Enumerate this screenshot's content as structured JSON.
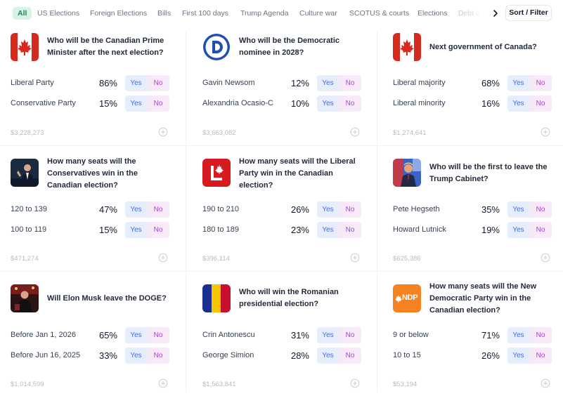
{
  "nav": {
    "tabs": [
      "All",
      "US Elections",
      "Foreign Elections",
      "Bills",
      "First 100 days",
      "Trump Agenda",
      "Culture war",
      "SCOTUS & courts",
      "Elections",
      "Debt c"
    ],
    "sort_label": "Sort / Filter",
    "arrow_icon": "chevron-right-icon"
  },
  "button_labels": {
    "yes": "Yes",
    "no": "No"
  },
  "colors": {
    "accent_green": "#18884f",
    "yes_text": "#3b6df0",
    "no_text": "#a646c9"
  },
  "markets": [
    {
      "title": "Who will be the Canadian Prime Minister after the next election?",
      "image": "canada-flag-icon",
      "options": [
        {
          "label": "Liberal Party",
          "pct": "86%"
        },
        {
          "label": "Conservative Party",
          "pct": "15%"
        }
      ],
      "volume": "$3,228,273"
    },
    {
      "title": "Who will be the Democratic nominee in 2028?",
      "image": "democratic-party-logo-icon",
      "options": [
        {
          "label": "Gavin Newsom",
          "pct": "12%"
        },
        {
          "label": "Alexandria Ocasio-C",
          "pct": "10%"
        }
      ],
      "volume": "$3,663,082"
    },
    {
      "title": "Next government of Canada?",
      "image": "canada-flag-icon",
      "options": [
        {
          "label": "Liberal majority",
          "pct": "68%"
        },
        {
          "label": "Liberal minority",
          "pct": "16%"
        }
      ],
      "volume": "$1,274,641"
    },
    {
      "title": "How many seats will the Conservatives win in the Canadian election?",
      "image": "conservative-leader-photo-icon",
      "options": [
        {
          "label": "120 to 139",
          "pct": "47%"
        },
        {
          "label": "100 to 119",
          "pct": "15%"
        }
      ],
      "volume": "$471,274"
    },
    {
      "title": "How many seats will the Liberal Party win in the Canadian election?",
      "image": "liberal-party-logo-icon",
      "options": [
        {
          "label": "190 to 210",
          "pct": "26%"
        },
        {
          "label": "180 to 189",
          "pct": "23%"
        }
      ],
      "volume": "$396,114"
    },
    {
      "title": "Who will be the first to leave the Trump Cabinet?",
      "image": "trump-photo-icon",
      "options": [
        {
          "label": "Pete Hegseth",
          "pct": "35%"
        },
        {
          "label": "Howard Lutnick",
          "pct": "19%"
        }
      ],
      "volume": "$625,386"
    },
    {
      "title": "Will Elon Musk leave the DOGE?",
      "image": "elon-musk-photo-icon",
      "options": [
        {
          "label": "Before Jan 1, 2026",
          "pct": "65%"
        },
        {
          "label": "Before Jun 16, 2025",
          "pct": "33%"
        }
      ],
      "volume": "$1,014,599"
    },
    {
      "title": "Who will win the Romanian presidential election?",
      "image": "romania-flag-icon",
      "options": [
        {
          "label": "Crin Antonescu",
          "pct": "31%"
        },
        {
          "label": "George Simion",
          "pct": "28%"
        }
      ],
      "volume": "$1,563,841"
    },
    {
      "title": "How many seats will the New Democratic Party win in the Canadian election?",
      "image": "ndp-logo-icon",
      "logo_text": "NDP",
      "options": [
        {
          "label": "9 or below",
          "pct": "71%"
        },
        {
          "label": "10 to 15",
          "pct": "26%"
        }
      ],
      "volume": "$53,194"
    }
  ]
}
